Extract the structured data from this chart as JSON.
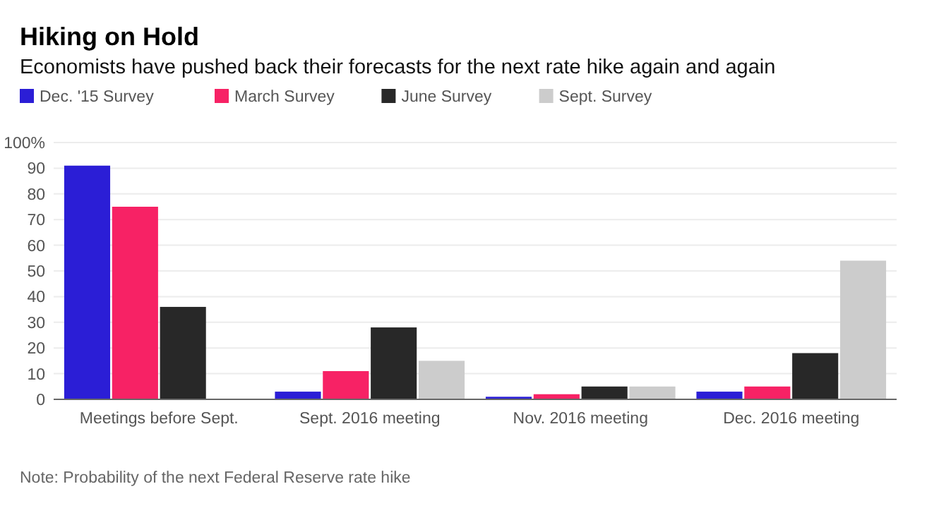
{
  "chart_data": {
    "type": "bar",
    "title": "Hiking on Hold",
    "subtitle": "Economists have pushed back their forecasts for the next rate hike again and again",
    "categories": [
      "Meetings before Sept.",
      "Sept. 2016 meeting",
      "Nov. 2016 meeting",
      "Dec. 2016 meeting"
    ],
    "series": [
      {
        "name": "Dec. '15 Survey",
        "color": "#2b1ed6",
        "values": [
          91,
          3,
          1,
          3
        ]
      },
      {
        "name": "March Survey",
        "color": "#f72265",
        "values": [
          75,
          11,
          2,
          5
        ]
      },
      {
        "name": "June Survey",
        "color": "#282828",
        "values": [
          36,
          28,
          5,
          18
        ]
      },
      {
        "name": "Sept. Survey",
        "color": "#cccccc",
        "values": [
          0,
          15,
          5,
          54
        ]
      }
    ],
    "ylim": [
      0,
      100
    ],
    "yticks": [
      0,
      10,
      20,
      30,
      40,
      50,
      60,
      70,
      80,
      90,
      {
        "value": 100,
        "label": "100%"
      }
    ],
    "grid": "y",
    "legend": "top left",
    "annotations": [
      "Note: Probability of the next Federal Reserve rate hike"
    ]
  }
}
